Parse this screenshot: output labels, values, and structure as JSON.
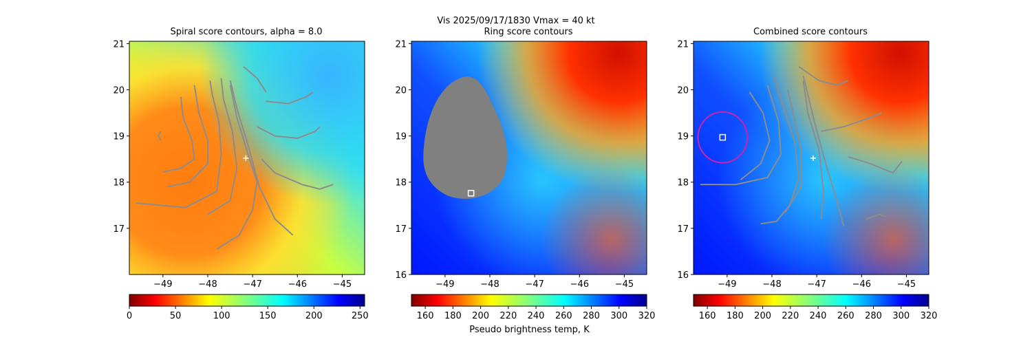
{
  "figure": {
    "suptitle": "Vis  2025/09/17/1830    Vmax = 40 kt",
    "colorbar_label": "Pseudo brightness temp, K"
  },
  "chart_data": [
    {
      "type": "heatmap",
      "title": "Spiral score contours, alpha =  8.0",
      "xlabel": "",
      "ylabel": "",
      "xlim": [
        -49.75,
        -44.5
      ],
      "ylim": [
        16.0,
        21.05
      ],
      "xticks": [
        -49,
        -48,
        -47,
        -46,
        -45
      ],
      "xtick_labels": [
        "−49",
        "−48",
        "−47",
        "−46",
        "−45"
      ],
      "yticks": [
        17,
        18,
        19,
        20,
        21
      ],
      "ytick_labels": [
        "17",
        "18",
        "19",
        "20",
        "21"
      ],
      "colormap": "jet_r",
      "colorbar": {
        "range": [
          0,
          255
        ],
        "ticks": [
          0,
          50,
          100,
          150,
          200,
          250
        ],
        "tick_labels": [
          "0",
          "50",
          "100",
          "150",
          "200",
          "250"
        ]
      },
      "markers": [
        {
          "kind": "plus",
          "x": -47.15,
          "y": 18.52,
          "color": "#ffffff"
        }
      ],
      "contours": [
        [
          [
            -49.0,
            18.22
          ],
          [
            -48.6,
            18.3
          ],
          [
            -48.3,
            18.5
          ],
          [
            -48.35,
            18.9
          ],
          [
            -48.55,
            19.4
          ],
          [
            -48.6,
            19.85
          ]
        ],
        [
          [
            -48.9,
            17.9
          ],
          [
            -48.4,
            18.0
          ],
          [
            -48.0,
            18.4
          ],
          [
            -48.0,
            18.9
          ],
          [
            -48.2,
            19.5
          ],
          [
            -48.3,
            20.1
          ]
        ],
        [
          [
            -49.6,
            17.55
          ],
          [
            -48.5,
            17.45
          ],
          [
            -47.8,
            17.8
          ],
          [
            -47.7,
            18.6
          ],
          [
            -47.75,
            19.3
          ],
          [
            -47.9,
            19.9
          ],
          [
            -47.95,
            20.2
          ]
        ],
        [
          [
            -48.0,
            17.3
          ],
          [
            -47.5,
            17.6
          ],
          [
            -47.35,
            18.3
          ],
          [
            -47.45,
            19.1
          ],
          [
            -47.65,
            19.8
          ],
          [
            -47.7,
            20.25
          ]
        ],
        [
          [
            -47.8,
            16.55
          ],
          [
            -47.3,
            16.85
          ],
          [
            -47.0,
            17.4
          ],
          [
            -46.9,
            18.0
          ],
          [
            -47.1,
            18.6
          ],
          [
            -47.35,
            19.4
          ],
          [
            -47.5,
            20.1
          ]
        ],
        [
          [
            -46.1,
            16.85
          ],
          [
            -46.5,
            17.2
          ],
          [
            -46.85,
            17.9
          ],
          [
            -47.1,
            18.8
          ],
          [
            -47.35,
            19.6
          ],
          [
            -47.5,
            20.2
          ]
        ],
        [
          [
            -46.8,
            18.5
          ],
          [
            -46.5,
            18.2
          ],
          [
            -45.9,
            17.95
          ],
          [
            -45.5,
            17.85
          ],
          [
            -45.2,
            17.95
          ]
        ],
        [
          [
            -46.9,
            19.2
          ],
          [
            -46.5,
            19.0
          ],
          [
            -46.0,
            18.95
          ],
          [
            -45.6,
            19.1
          ],
          [
            -45.5,
            19.2
          ]
        ],
        [
          [
            -46.7,
            19.75
          ],
          [
            -46.2,
            19.7
          ],
          [
            -45.8,
            19.85
          ],
          [
            -45.65,
            19.95
          ]
        ],
        [
          [
            -47.2,
            20.5
          ],
          [
            -46.9,
            20.25
          ],
          [
            -46.7,
            19.95
          ]
        ],
        [
          [
            -49.05,
            18.9
          ],
          [
            -49.1,
            19.0
          ],
          [
            -49.05,
            19.1
          ]
        ]
      ]
    },
    {
      "type": "heatmap",
      "title": "Ring score contours",
      "xlabel": "",
      "ylabel": "",
      "xlim": [
        -49.75,
        -44.5
      ],
      "ylim": [
        16.0,
        21.05
      ],
      "xticks": [
        -49,
        -48,
        -47,
        -46,
        -45
      ],
      "xtick_labels": [
        "−49",
        "−48",
        "−47",
        "−46",
        "−45"
      ],
      "yticks": [
        16,
        17,
        18,
        19,
        20,
        21
      ],
      "ytick_labels": [
        "16",
        "17",
        "18",
        "19",
        "20",
        "21"
      ],
      "colormap": "jet_r",
      "colorbar": {
        "range": [
          150,
          320
        ],
        "ticks": [
          160,
          180,
          200,
          220,
          240,
          260,
          280,
          300,
          320
        ],
        "tick_labels": [
          "160",
          "180",
          "200",
          "220",
          "240",
          "260",
          "280",
          "300",
          "320"
        ]
      },
      "masked_region": {
        "color": "#808080"
      },
      "markers": [
        {
          "kind": "square",
          "x": -48.42,
          "y": 17.76,
          "color": "#ffffff"
        }
      ],
      "contours": []
    },
    {
      "type": "heatmap",
      "title": "Combined score contours",
      "xlabel": "",
      "ylabel": "",
      "xlim": [
        -49.75,
        -44.5
      ],
      "ylim": [
        16.0,
        21.05
      ],
      "xticks": [
        -49,
        -48,
        -47,
        -46,
        -45
      ],
      "xtick_labels": [
        "−49",
        "−48",
        "−47",
        "−46",
        "−45"
      ],
      "yticks": [
        16,
        17,
        18,
        19,
        20,
        21
      ],
      "ytick_labels": [
        "16",
        "17",
        "18",
        "19",
        "20",
        "21"
      ],
      "colormap": "jet_r",
      "colorbar": {
        "range": [
          150,
          320
        ],
        "ticks": [
          160,
          180,
          200,
          220,
          240,
          260,
          280,
          300,
          320
        ],
        "tick_labels": [
          "160",
          "180",
          "200",
          "220",
          "240",
          "260",
          "280",
          "300",
          "320"
        ]
      },
      "ring": {
        "center": [
          -49.1,
          18.97
        ],
        "radius_deg": 0.55,
        "color": "#cc22aa"
      },
      "markers": [
        {
          "kind": "square",
          "x": -49.1,
          "y": 18.97,
          "color": "#ffffff"
        },
        {
          "kind": "plus",
          "x": -47.08,
          "y": 18.52,
          "color": "#ffffff"
        }
      ],
      "contours": [
        [
          [
            -48.7,
            18.05
          ],
          [
            -48.25,
            18.4
          ],
          [
            -48.05,
            18.9
          ],
          [
            -48.2,
            19.5
          ],
          [
            -48.5,
            19.95
          ]
        ],
        [
          [
            -49.6,
            17.95
          ],
          [
            -48.8,
            17.95
          ],
          [
            -48.1,
            18.1
          ],
          [
            -47.8,
            18.6
          ],
          [
            -47.85,
            19.3
          ],
          [
            -48.1,
            20.1
          ]
        ],
        [
          [
            -48.25,
            17.1
          ],
          [
            -47.9,
            17.15
          ],
          [
            -47.6,
            17.5
          ],
          [
            -47.4,
            18.1
          ],
          [
            -47.5,
            18.9
          ],
          [
            -47.8,
            19.8
          ],
          [
            -47.95,
            20.3
          ]
        ],
        [
          [
            -47.7,
            17.35
          ],
          [
            -47.35,
            17.9
          ],
          [
            -47.35,
            18.7
          ],
          [
            -47.55,
            19.6
          ],
          [
            -47.65,
            20.0
          ]
        ],
        [
          [
            -46.9,
            17.2
          ],
          [
            -46.85,
            17.8
          ],
          [
            -46.95,
            18.7
          ],
          [
            -47.2,
            19.5
          ],
          [
            -47.3,
            20.2
          ]
        ],
        [
          [
            -46.4,
            17.05
          ],
          [
            -46.55,
            17.6
          ],
          [
            -46.8,
            18.4
          ],
          [
            -47.05,
            19.3
          ],
          [
            -47.3,
            20.3
          ]
        ],
        [
          [
            -46.3,
            18.55
          ],
          [
            -45.8,
            18.4
          ],
          [
            -45.3,
            18.2
          ],
          [
            -45.1,
            18.45
          ]
        ],
        [
          [
            -46.9,
            19.1
          ],
          [
            -46.4,
            19.2
          ],
          [
            -45.8,
            19.4
          ],
          [
            -45.55,
            19.5
          ]
        ],
        [
          [
            -47.4,
            20.5
          ],
          [
            -46.95,
            20.2
          ],
          [
            -46.55,
            20.1
          ],
          [
            -46.3,
            20.2
          ]
        ],
        [
          [
            -45.9,
            17.2
          ],
          [
            -45.6,
            17.3
          ],
          [
            -45.45,
            17.25
          ]
        ]
      ]
    }
  ]
}
